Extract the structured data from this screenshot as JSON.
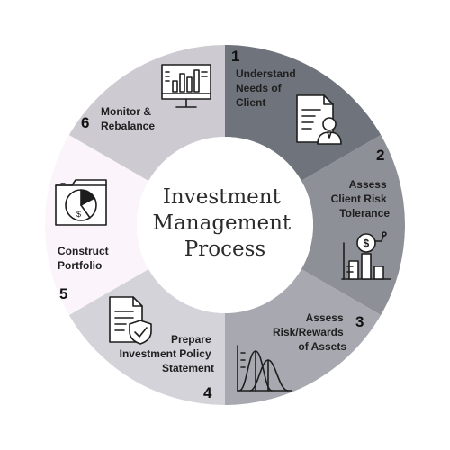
{
  "center": {
    "title_lines": [
      "Investment",
      "Management",
      "Process"
    ]
  },
  "steps": [
    {
      "number": "1",
      "label_lines": [
        "Understand",
        "Needs of",
        "Client"
      ],
      "color": "#6f747c",
      "icon": "client-document-icon"
    },
    {
      "number": "2",
      "label_lines": [
        "Assess",
        "Client Risk",
        "Tolerance"
      ],
      "color": "#8e9097",
      "icon": "risk-chart-icon"
    },
    {
      "number": "3",
      "label_lines": [
        "Assess",
        "Risk/Rewards",
        "of Assets"
      ],
      "color": "#a8a9b0",
      "icon": "distribution-curves-icon"
    },
    {
      "number": "4",
      "label_lines": [
        "Prepare",
        "Investment Policy",
        "Statement"
      ],
      "color": "#d4d3d9",
      "icon": "policy-shield-icon"
    },
    {
      "number": "5",
      "label_lines": [
        "Construct",
        "Portfolio"
      ],
      "color": "#fbf5fb",
      "icon": "portfolio-folder-icon"
    },
    {
      "number": "6",
      "label_lines": [
        "Monitor &",
        "Rebalance"
      ],
      "color": "#cdcbd1",
      "icon": "monitor-chart-icon"
    }
  ]
}
